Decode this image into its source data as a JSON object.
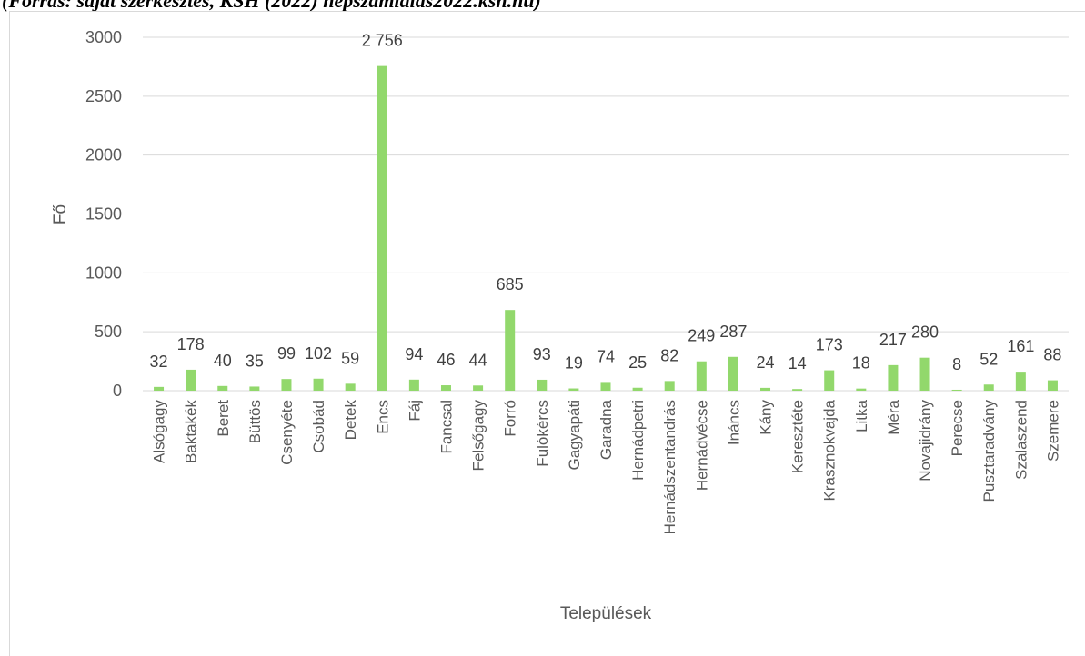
{
  "caption": "(Forrás: saját szerkesztés, KSH (2022) népszámlálás2022.ksh.hu)",
  "chart_data": {
    "type": "bar",
    "xlabel": "Települések",
    "ylabel": "Fő",
    "ylim": [
      0,
      3000
    ],
    "yticks": [
      0,
      500,
      1000,
      1500,
      2000,
      2500,
      3000
    ],
    "grid": true,
    "bar_color": "#92d86c",
    "categories": [
      "Alsógagy",
      "Baktakék",
      "Beret",
      "Büttös",
      "Csenyéte",
      "Csobád",
      "Detek",
      "Encs",
      "Fáj",
      "Fancsal",
      "Felsőgagy",
      "Forró",
      "Fulókércs",
      "Gagyapáti",
      "Garadna",
      "Hernádpetri",
      "Hernádszentandrás",
      "Hernádvécse",
      "Ináncs",
      "Kány",
      "Keresztéte",
      "Krasznokvajda",
      "Litka",
      "Méra",
      "Novajidrány",
      "Perecse",
      "Pusztaradvány",
      "Szalaszend",
      "Szemere"
    ],
    "values": [
      32,
      178,
      40,
      35,
      99,
      102,
      59,
      2756,
      94,
      46,
      44,
      685,
      93,
      19,
      74,
      25,
      82,
      249,
      287,
      24,
      14,
      173,
      18,
      217,
      280,
      8,
      52,
      161,
      88
    ],
    "data_labels": [
      "32",
      "178",
      "40",
      "35",
      "99",
      "102",
      "59",
      "2 756",
      "94",
      "46",
      "44",
      "685",
      "93",
      "19",
      "74",
      "25",
      "82",
      "249",
      "287",
      "24",
      "14",
      "173",
      "18",
      "217",
      "280",
      "8",
      "52",
      "161",
      "88"
    ]
  }
}
